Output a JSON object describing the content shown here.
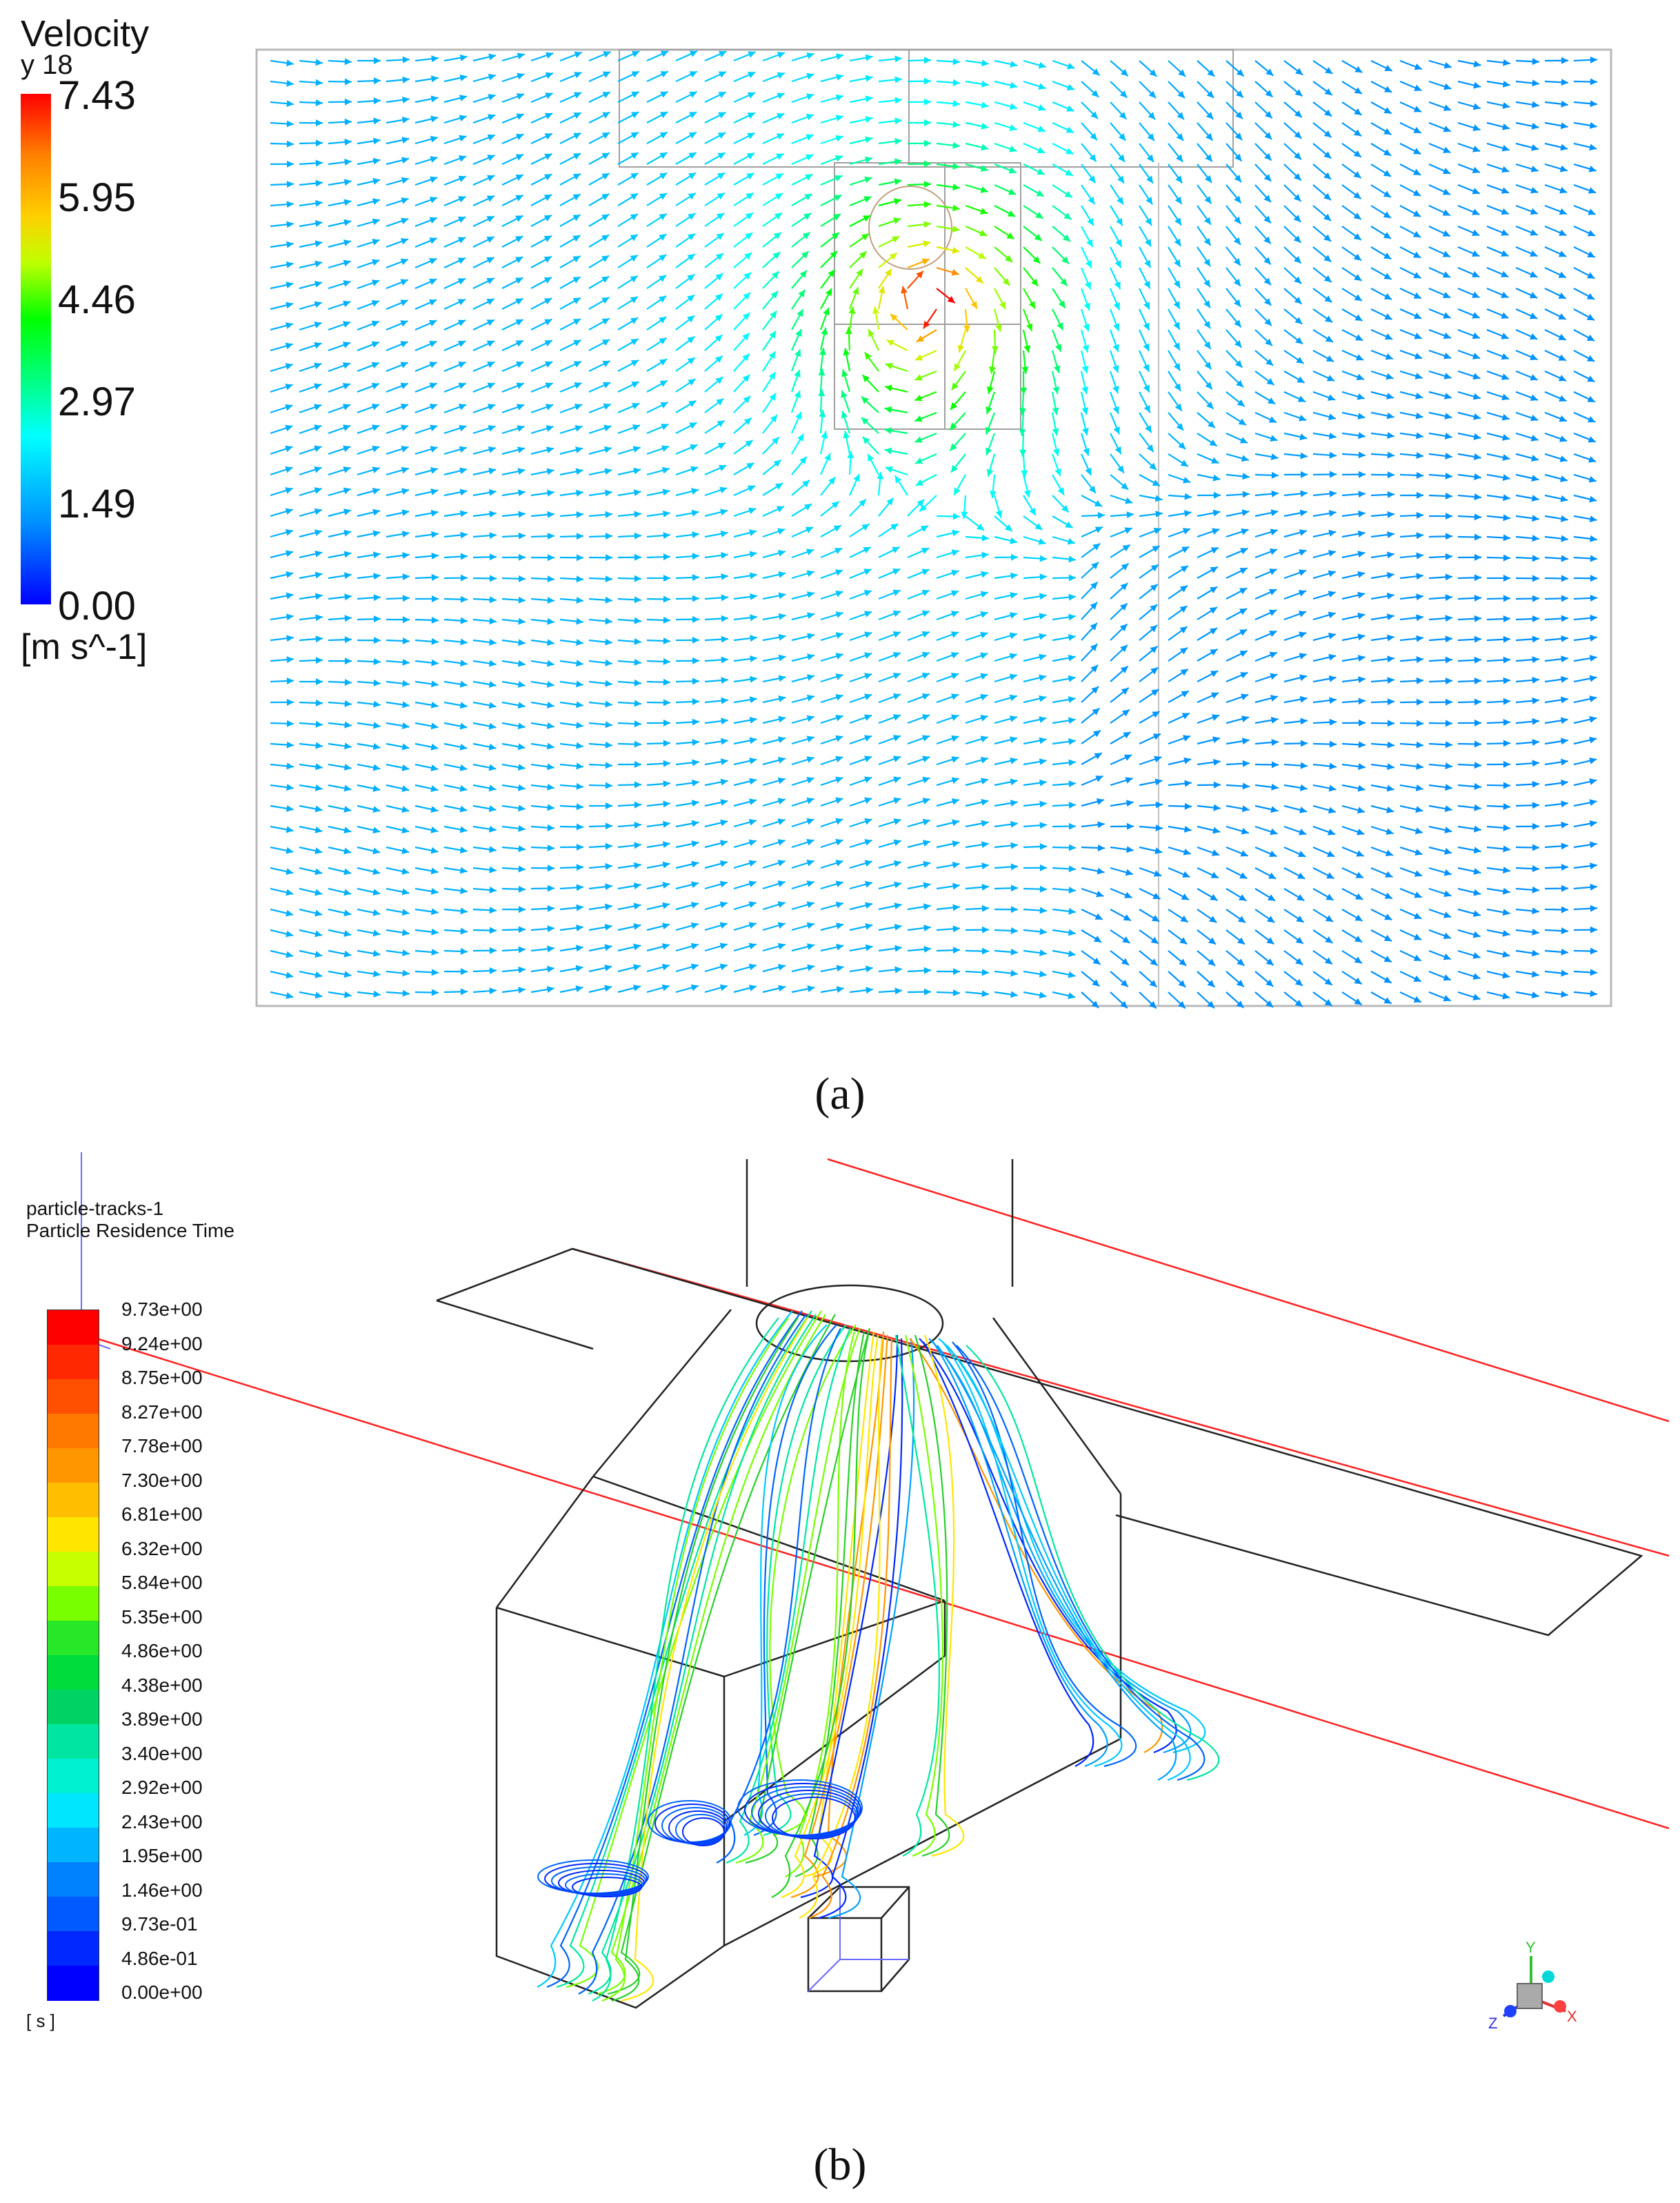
{
  "panel_a": {
    "legend": {
      "title": "Velocity",
      "subtitle": "y 18",
      "ticks": [
        "7.43",
        "5.95",
        "4.46",
        "2.97",
        "1.49",
        "0.00"
      ],
      "unit": "[m s^-1]",
      "range": [
        0.0,
        7.43
      ]
    },
    "caption": "(a)"
  },
  "panel_b": {
    "legend": {
      "title_line1": "particle-tracks-1",
      "title_line2": "Particle Residence Time",
      "ticks": [
        "9.73e+00",
        "9.24e+00",
        "8.75e+00",
        "8.27e+00",
        "7.78e+00",
        "7.30e+00",
        "6.81e+00",
        "6.32e+00",
        "5.84e+00",
        "5.35e+00",
        "4.86e+00",
        "4.38e+00",
        "3.89e+00",
        "3.40e+00",
        "2.92e+00",
        "2.43e+00",
        "1.95e+00",
        "1.46e+00",
        "9.73e-01",
        "4.86e-01",
        "0.00e+00"
      ],
      "unit": "[ s ]",
      "colors": [
        "#ff0000",
        "#ff2800",
        "#ff5000",
        "#ff7800",
        "#ff9600",
        "#ffbe00",
        "#ffe600",
        "#c8ff00",
        "#78ff00",
        "#28e628",
        "#00dc3c",
        "#00d264",
        "#00e6a0",
        "#00f0d2",
        "#00e6ff",
        "#00b4ff",
        "#0082ff",
        "#005aff",
        "#0028ff",
        "#0000ff"
      ]
    },
    "axes_labels": {
      "y": "Y",
      "z": "Z",
      "x": "X"
    },
    "caption": "(b)"
  }
}
